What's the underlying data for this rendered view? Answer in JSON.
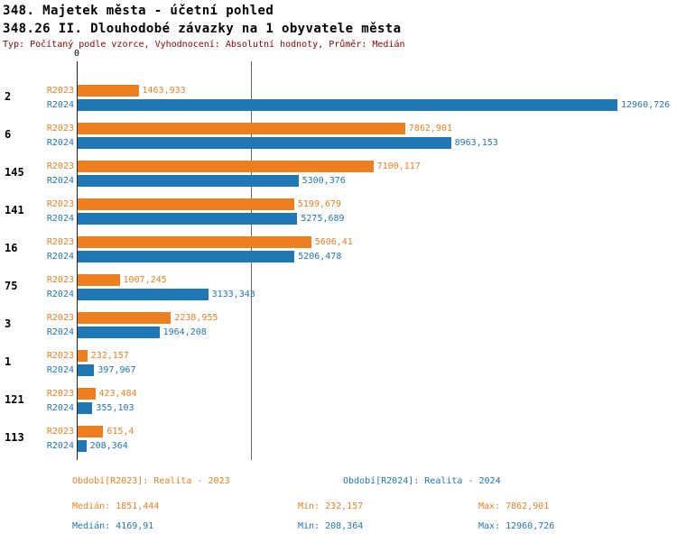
{
  "header": {
    "title": "348. Majetek města - účetní pohled",
    "subtitle": "348.26 II. Dlouhodobé závazky na 1 obyvatele města",
    "meta": "Typ: Počítaný podle vzorce, Vyhodnocení: Absolutní hodnoty, Průměr: Medián"
  },
  "colors": {
    "r2023": "#EE7F1E",
    "r2024": "#1F77B4",
    "meta_text": "#8B0000",
    "median_line": "#666666",
    "axis": "#222222"
  },
  "chart_data": {
    "type": "bar",
    "orientation": "horizontal",
    "title": "348. Majetek města - účetní pohled",
    "subtitle": "348.26 II. Dlouhodobé závazky na 1 obyvatele města",
    "categories": [
      "2",
      "6",
      "145",
      "141",
      "16",
      "75",
      "3",
      "1",
      "121",
      "113"
    ],
    "series": [
      {
        "name": "R2023",
        "key": "r2023",
        "values": [
          1463.933,
          7862.901,
          7100.117,
          5199.679,
          5606.41,
          1007.245,
          2238.955,
          232.157,
          423.484,
          615.4
        ],
        "displays": [
          "1463,933",
          "7862,901",
          "7100,117",
          "5199,679",
          "5606,41",
          "1007,245",
          "2238,955",
          "232,157",
          "423,484",
          "615,4"
        ]
      },
      {
        "name": "R2024",
        "key": "r2024",
        "values": [
          12960.726,
          8963.153,
          5300.376,
          5275.689,
          5206.478,
          3133.343,
          1964.208,
          397.967,
          355.103,
          208.364
        ],
        "displays": [
          "12960,726",
          "8963,153",
          "5300,376",
          "5275,689",
          "5206,478",
          "3133,343",
          "1964,208",
          "397,967",
          "355,103",
          "208,364"
        ]
      }
    ],
    "x_axis": {
      "zero_label": "0",
      "min": 0,
      "max": 12960.726
    },
    "median_line_value": 4169.91,
    "legend_position": "bottom",
    "grid": false
  },
  "legend": {
    "r2023": "Období[R2023]: Realita - 2023",
    "r2024": "Období[R2024]: Realita - 2024"
  },
  "stats": {
    "r2023": {
      "median": "Medián: 1851,444",
      "min": "Min: 232,157",
      "max": "Max: 7862,901"
    },
    "r2024": {
      "median": "Medián: 4169,91",
      "min": "Min: 208,364",
      "max": "Max: 12960,726"
    }
  }
}
